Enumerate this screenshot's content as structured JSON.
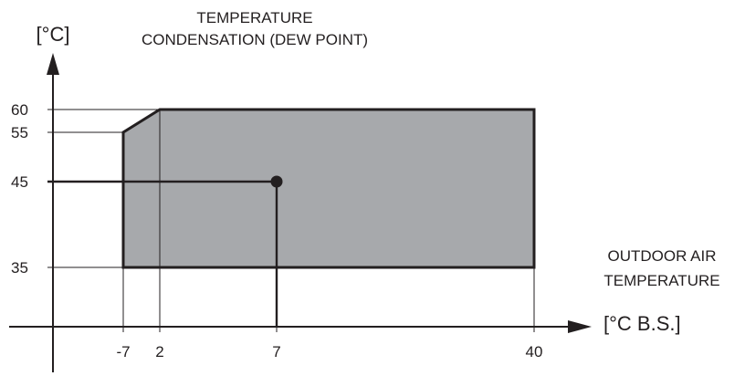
{
  "chart_data": {
    "type": "area",
    "title": [
      "TEMPERATURE",
      "CONDENSATION (DEW POINT)"
    ],
    "y_unit": "[°C]",
    "x_unit": "[°C B.S.]",
    "x_label": [
      "OUTDOOR AIR",
      "TEMPERATURE"
    ],
    "x_ticks": [
      -7,
      2,
      7,
      40
    ],
    "y_ticks": [
      35,
      45,
      55,
      60
    ],
    "operating_envelope": [
      {
        "x": -7,
        "y": 35
      },
      {
        "x": -7,
        "y": 55
      },
      {
        "x": 2,
        "y": 60
      },
      {
        "x": 40,
        "y": 60
      },
      {
        "x": 40,
        "y": 35
      }
    ],
    "design_point": {
      "x": 7,
      "y": 45
    },
    "fill_color": "#a7a9ac",
    "line_color": "#231f20",
    "grid": false
  }
}
